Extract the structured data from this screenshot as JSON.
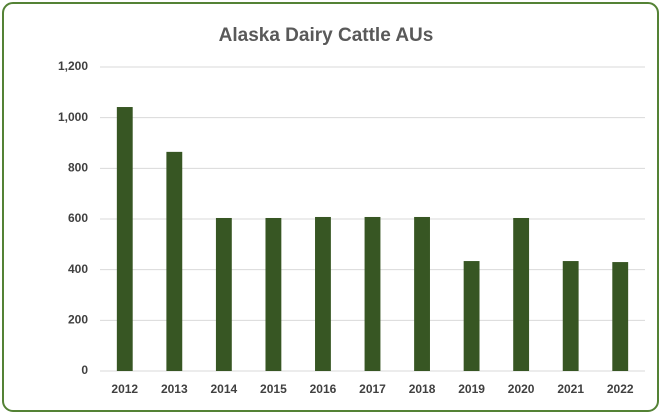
{
  "chart_data": {
    "type": "bar",
    "title": "Alaska Dairy Cattle AUs",
    "categories": [
      "2012",
      "2013",
      "2014",
      "2015",
      "2016",
      "2017",
      "2018",
      "2019",
      "2020",
      "2021",
      "2022"
    ],
    "values": [
      1042,
      865,
      604,
      604,
      608,
      608,
      608,
      434,
      604,
      434,
      430
    ],
    "color": "#375623",
    "ylim": [
      0,
      1200
    ],
    "yticks": [
      0,
      200,
      400,
      600,
      800,
      {
        "value": 1000,
        "label": "1,000"
      },
      {
        "value": 1200,
        "label": "1,200"
      }
    ],
    "grid": true
  }
}
